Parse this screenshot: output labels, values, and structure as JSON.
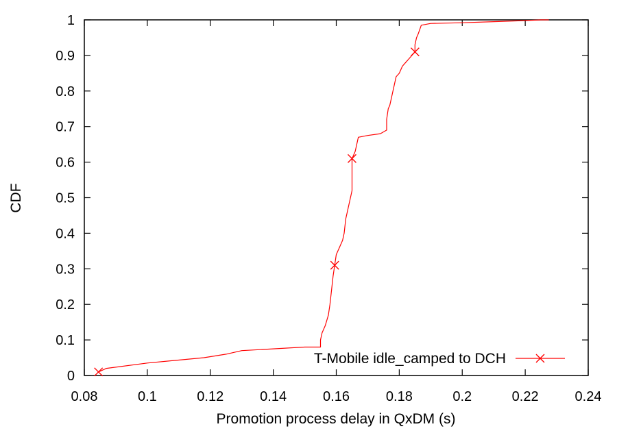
{
  "chart_data": {
    "type": "line",
    "xlabel": "Promotion process delay in QxDM (s)",
    "ylabel": "CDF",
    "xlim": [
      0.08,
      0.24
    ],
    "ylim": [
      0,
      1
    ],
    "xticks": [
      0.08,
      0.1,
      0.12,
      0.14,
      0.16,
      0.18,
      0.2,
      0.22,
      0.24
    ],
    "xtick_labels": [
      "0.08",
      "0.1",
      "0.12",
      "0.14",
      "0.16",
      "0.18",
      "0.2",
      "0.22",
      "0.24"
    ],
    "yticks": [
      0,
      0.1,
      0.2,
      0.3,
      0.4,
      0.5,
      0.6,
      0.7,
      0.8,
      0.9,
      1
    ],
    "ytick_labels": [
      "0",
      "0.1",
      "0.2",
      "0.3",
      "0.4",
      "0.5",
      "0.6",
      "0.7",
      "0.8",
      "0.9",
      "1"
    ],
    "grid": false,
    "legend_position": "bottom-right",
    "series": [
      {
        "name": "T-Mobile idle_camped to DCH",
        "color": "#ff0000",
        "marker": "x",
        "x": [
          0.0845,
          0.087,
          0.1,
          0.118,
          0.125,
          0.13,
          0.14,
          0.15,
          0.155,
          0.155,
          0.1555,
          0.1565,
          0.1575,
          0.158,
          0.1585,
          0.159,
          0.1595,
          0.16,
          0.161,
          0.162,
          0.1625,
          0.163,
          0.164,
          0.1645,
          0.165,
          0.165,
          0.1655,
          0.166,
          0.1665,
          0.167,
          0.17,
          0.174,
          0.176,
          0.176,
          0.1765,
          0.177,
          0.1775,
          0.178,
          0.1785,
          0.179,
          0.18,
          0.181,
          0.182,
          0.183,
          0.184,
          0.185,
          0.185,
          0.1855,
          0.186,
          0.187,
          0.19,
          0.2,
          0.21,
          0.22,
          0.225,
          0.2275
        ],
        "y": [
          0.01,
          0.02,
          0.035,
          0.05,
          0.06,
          0.07,
          0.075,
          0.08,
          0.08,
          0.1,
          0.12,
          0.14,
          0.17,
          0.2,
          0.24,
          0.28,
          0.31,
          0.34,
          0.36,
          0.38,
          0.4,
          0.44,
          0.48,
          0.5,
          0.52,
          0.61,
          0.62,
          0.63,
          0.65,
          0.67,
          0.675,
          0.68,
          0.69,
          0.72,
          0.75,
          0.76,
          0.78,
          0.8,
          0.82,
          0.84,
          0.85,
          0.87,
          0.88,
          0.89,
          0.9,
          0.91,
          0.93,
          0.95,
          0.96,
          0.985,
          0.99,
          0.992,
          0.995,
          0.998,
          1.0,
          1.0
        ],
        "marker_points": [
          [
            0.0845,
            0.01
          ],
          [
            0.1595,
            0.31
          ],
          [
            0.165,
            0.61
          ],
          [
            0.185,
            0.91
          ]
        ]
      }
    ]
  }
}
